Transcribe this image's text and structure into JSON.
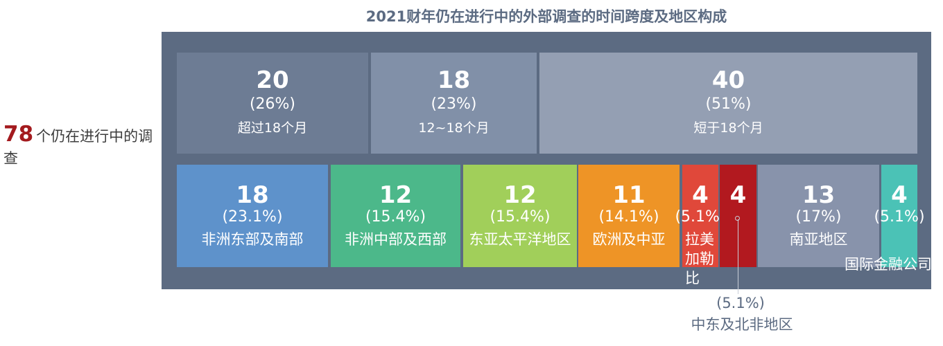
{
  "chart_data": {
    "type": "treemap",
    "title": "2021财年仍在进行中的外部调查的时间跨度及地区构成",
    "total": {
      "value": "78",
      "label": "个仍在进行中的调查"
    },
    "duration": [
      {
        "value": 20,
        "pct": "(26%)",
        "label": "超过18个月",
        "color": "#6d7c94"
      },
      {
        "value": 18,
        "pct": "(23%)",
        "label": "12~18个月",
        "color": "#8190a8"
      },
      {
        "value": 40,
        "pct": "(51%)",
        "label": "短于18个月",
        "color": "#949fb3"
      }
    ],
    "regions": [
      {
        "value": 18,
        "pct": "(23.1%)",
        "label": "非洲东部及南部",
        "color": "#5e92cb"
      },
      {
        "value": 12,
        "pct": "(15.4%)",
        "label": "非洲中部及西部",
        "color": "#4cb88a"
      },
      {
        "value": 12,
        "pct": "(15.4%)",
        "label": "东亚太平洋地区",
        "color": "#a1cf5a"
      },
      {
        "value": 11,
        "pct": "(14.1%)",
        "label": "欧洲及中亚",
        "color": "#ee9426"
      },
      {
        "value": 4,
        "pct": "(5.1%)",
        "label": "拉美加勒比",
        "color": "#e0483a"
      },
      {
        "value": 4,
        "pct": "(5.1%)",
        "label": "中东及北非地区",
        "color": "#b2191f"
      },
      {
        "value": 13,
        "pct": "(17%)",
        "label": "南亚地区",
        "color": "#8893ab"
      },
      {
        "value": 4,
        "pct": "(5.1%)",
        "label": "国际金融公司",
        "color": "#4bc2b6"
      }
    ]
  }
}
